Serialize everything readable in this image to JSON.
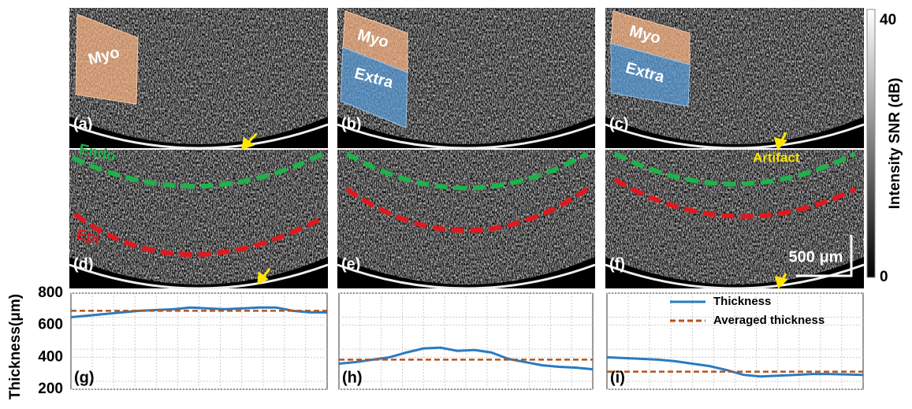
{
  "panel_labels": [
    "(a)",
    "(b)",
    "(c)",
    "(d)",
    "(e)",
    "(f)"
  ],
  "region_labels": [
    "Myo",
    "Myo",
    "Extra",
    "Myo",
    "Extra"
  ],
  "boundary_labels": [
    "Endo",
    "Epi"
  ],
  "artifact_label": "Artifact",
  "scale_bar": "500 μm",
  "colorbar": {
    "title": "Intensity SNR (dB)",
    "lim": [
      0,
      40
    ],
    "ticks": [
      0,
      40
    ]
  },
  "chart_data": [
    {
      "type": "line",
      "label": "(g)",
      "ylabel": "Thickness(μm)",
      "ylim": [
        200,
        800
      ],
      "yticks": [
        200,
        400,
        600,
        800
      ],
      "grid": true,
      "series": [
        {
          "color": "#2a7bc0",
          "values": [
            650,
            660,
            670,
            680,
            690,
            695,
            700,
            710,
            705,
            700,
            705,
            710,
            710,
            690,
            680,
            680
          ]
        },
        {
          "color": "#b5541c",
          "values": [
            690
          ]
        }
      ]
    },
    {
      "type": "line",
      "label": "(h)",
      "ylim": [
        200,
        800
      ],
      "grid": true,
      "series": [
        {
          "color": "#2a7bc0",
          "values": [
            360,
            370,
            385,
            400,
            430,
            455,
            460,
            440,
            445,
            430,
            390,
            370,
            350,
            340,
            335,
            325
          ]
        },
        {
          "color": "#b5541c",
          "values": [
            385
          ]
        }
      ]
    },
    {
      "type": "line",
      "label": "(i)",
      "ylim": [
        200,
        800
      ],
      "grid": true,
      "legend": "top",
      "series": [
        {
          "name": "Thickness",
          "color": "#2a7bc0",
          "values": [
            400,
            395,
            390,
            385,
            375,
            360,
            345,
            320,
            290,
            280,
            285,
            290,
            295,
            295,
            293,
            290
          ]
        },
        {
          "name": "Averaged thickness",
          "color": "#b5541c",
          "values": [
            310
          ]
        }
      ]
    }
  ]
}
